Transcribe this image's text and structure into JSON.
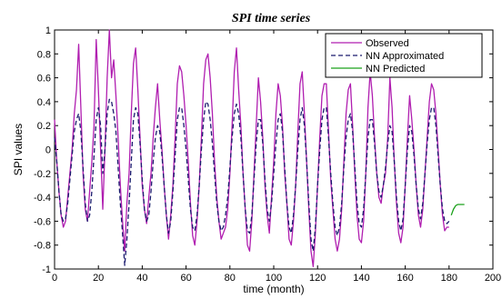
{
  "chart_data": {
    "type": "line",
    "title": "SPI time series",
    "xlabel": "time (month)",
    "ylabel": "SPI values",
    "xlim": [
      0,
      200
    ],
    "ylim": [
      -1,
      1
    ],
    "xticks": [
      0,
      20,
      40,
      60,
      80,
      100,
      120,
      140,
      160,
      180,
      200
    ],
    "yticks": [
      -1,
      -0.8,
      -0.6,
      -0.4,
      -0.2,
      0,
      0.2,
      0.4,
      0.6,
      0.8,
      1
    ],
    "legend_position": "top-right",
    "series": [
      {
        "name": "Observed",
        "color": "#b01eb0",
        "style": "solid",
        "x": [
          0,
          1,
          2,
          3,
          4,
          5,
          6,
          7,
          8,
          9,
          10,
          11,
          12,
          13,
          14,
          15,
          16,
          17,
          18,
          19,
          20,
          21,
          22,
          23,
          24,
          25,
          26,
          27,
          28,
          29,
          30,
          31,
          32,
          33,
          34,
          35,
          36,
          37,
          38,
          39,
          40,
          41,
          42,
          43,
          44,
          45,
          46,
          47,
          48,
          49,
          50,
          51,
          52,
          53,
          54,
          55,
          56,
          57,
          58,
          59,
          60,
          61,
          62,
          63,
          64,
          65,
          66,
          67,
          68,
          69,
          70,
          71,
          72,
          73,
          74,
          75,
          76,
          77,
          78,
          79,
          80,
          81,
          82,
          83,
          84,
          85,
          86,
          87,
          88,
          89,
          90,
          91,
          92,
          93,
          94,
          95,
          96,
          97,
          98,
          99,
          100,
          101,
          102,
          103,
          104,
          105,
          106,
          107,
          108,
          109,
          110,
          111,
          112,
          113,
          114,
          115,
          116,
          117,
          118,
          119,
          120,
          121,
          122,
          123,
          124,
          125,
          126,
          127,
          128,
          129,
          130,
          131,
          132,
          133,
          134,
          135,
          136,
          137,
          138,
          139,
          140,
          141,
          142,
          143,
          144,
          145,
          146,
          147,
          148,
          149,
          150,
          151,
          152,
          153,
          154,
          155,
          156,
          157,
          158,
          159,
          160,
          161,
          162,
          163,
          164,
          165,
          166,
          167,
          168,
          169,
          170,
          171,
          172,
          173,
          174,
          175,
          176,
          177,
          178,
          179,
          180
        ],
        "y": [
          0.25,
          -0.1,
          -0.35,
          -0.55,
          -0.65,
          -0.6,
          -0.4,
          -0.2,
          0.0,
          0.3,
          0.5,
          0.88,
          0.35,
          -0.2,
          -0.5,
          -0.6,
          -0.35,
          -0.1,
          0.2,
          0.92,
          0.5,
          0.0,
          -0.5,
          0.0,
          0.6,
          1.0,
          0.6,
          0.75,
          0.45,
          0.1,
          -0.3,
          -0.6,
          -0.85,
          -0.45,
          -0.2,
          0.3,
          0.72,
          0.85,
          0.5,
          0.1,
          -0.3,
          -0.5,
          -0.62,
          -0.4,
          -0.2,
          0.1,
          0.35,
          0.55,
          0.25,
          0.0,
          -0.3,
          -0.55,
          -0.75,
          -0.55,
          -0.3,
          0.1,
          0.55,
          0.7,
          0.65,
          0.45,
          0.2,
          -0.1,
          -0.45,
          -0.72,
          -0.8,
          -0.6,
          -0.3,
          0.1,
          0.55,
          0.75,
          0.8,
          0.6,
          0.3,
          -0.1,
          -0.4,
          -0.6,
          -0.75,
          -0.7,
          -0.65,
          -0.5,
          -0.2,
          0.2,
          0.65,
          0.85,
          0.5,
          0.2,
          -0.2,
          -0.5,
          -0.8,
          -0.85,
          -0.6,
          -0.2,
          0.2,
          0.6,
          0.4,
          0.1,
          -0.3,
          -0.55,
          -0.7,
          -0.4,
          -0.1,
          0.3,
          0.55,
          0.45,
          0.2,
          -0.2,
          -0.45,
          -0.75,
          -0.8,
          -0.6,
          -0.3,
          0.15,
          0.55,
          0.65,
          0.3,
          -0.1,
          -0.5,
          -0.85,
          -0.98,
          -0.7,
          -0.3,
          0.1,
          0.45,
          0.55,
          0.55,
          0.15,
          -0.25,
          -0.5,
          -0.75,
          -0.85,
          -0.75,
          -0.5,
          -0.1,
          0.3,
          0.5,
          0.55,
          0.2,
          -0.2,
          -0.55,
          -0.75,
          -0.78,
          -0.6,
          -0.2,
          0.35,
          0.65,
          0.45,
          0.1,
          -0.2,
          -0.4,
          -0.45,
          -0.3,
          -0.2,
          0.1,
          0.6,
          0.35,
          -0.1,
          -0.45,
          -0.7,
          -0.78,
          -0.65,
          -0.3,
          0.1,
          0.45,
          0.25,
          0.0,
          -0.3,
          -0.55,
          -0.65,
          -0.5,
          -0.2,
          0.1,
          0.4,
          0.55,
          0.5,
          0.3,
          0.0,
          -0.3,
          -0.55,
          -0.68,
          -0.65,
          -0.65
        ]
      },
      {
        "name": "NN Approximated",
        "color": "#1a1a6e",
        "style": "dashed",
        "x": [
          0,
          1,
          2,
          3,
          4,
          5,
          6,
          7,
          8,
          9,
          10,
          11,
          12,
          13,
          14,
          15,
          16,
          17,
          18,
          19,
          20,
          21,
          22,
          23,
          24,
          25,
          26,
          27,
          28,
          29,
          30,
          31,
          32,
          33,
          34,
          35,
          36,
          37,
          38,
          39,
          40,
          41,
          42,
          43,
          44,
          45,
          46,
          47,
          48,
          49,
          50,
          51,
          52,
          53,
          54,
          55,
          56,
          57,
          58,
          59,
          60,
          61,
          62,
          63,
          64,
          65,
          66,
          67,
          68,
          69,
          70,
          71,
          72,
          73,
          74,
          75,
          76,
          77,
          78,
          79,
          80,
          81,
          82,
          83,
          84,
          85,
          86,
          87,
          88,
          89,
          90,
          91,
          92,
          93,
          94,
          95,
          96,
          97,
          98,
          99,
          100,
          101,
          102,
          103,
          104,
          105,
          106,
          107,
          108,
          109,
          110,
          111,
          112,
          113,
          114,
          115,
          116,
          117,
          118,
          119,
          120,
          121,
          122,
          123,
          124,
          125,
          126,
          127,
          128,
          129,
          130,
          131,
          132,
          133,
          134,
          135,
          136,
          137,
          138,
          139,
          140,
          141,
          142,
          143,
          144,
          145,
          146,
          147,
          148,
          149,
          150,
          151,
          152,
          153,
          154,
          155,
          156,
          157,
          158,
          159,
          160,
          161,
          162,
          163,
          164,
          165,
          166,
          167,
          168,
          169,
          170,
          171,
          172,
          173,
          174,
          175,
          176,
          177,
          178,
          179,
          180
        ],
        "y": [
          0.1,
          -0.1,
          -0.35,
          -0.55,
          -0.6,
          -0.58,
          -0.45,
          -0.25,
          -0.05,
          0.15,
          0.25,
          0.3,
          0.15,
          -0.15,
          -0.45,
          -0.6,
          -0.55,
          -0.35,
          -0.05,
          0.25,
          0.35,
          0.2,
          -0.2,
          0.0,
          0.3,
          0.42,
          0.4,
          0.3,
          0.15,
          -0.15,
          -0.45,
          -0.7,
          -0.97,
          -0.75,
          -0.45,
          -0.1,
          0.25,
          0.35,
          0.3,
          0.05,
          -0.25,
          -0.5,
          -0.6,
          -0.55,
          -0.35,
          -0.1,
          0.1,
          0.2,
          0.15,
          -0.05,
          -0.3,
          -0.55,
          -0.7,
          -0.6,
          -0.35,
          -0.05,
          0.25,
          0.35,
          0.35,
          0.2,
          0.0,
          -0.25,
          -0.5,
          -0.65,
          -0.68,
          -0.55,
          -0.3,
          0.0,
          0.25,
          0.4,
          0.38,
          0.25,
          0.05,
          -0.2,
          -0.45,
          -0.6,
          -0.68,
          -0.65,
          -0.55,
          -0.4,
          -0.15,
          0.1,
          0.3,
          0.38,
          0.3,
          0.1,
          -0.2,
          -0.5,
          -0.68,
          -0.7,
          -0.55,
          -0.25,
          0.05,
          0.25,
          0.25,
          0.05,
          -0.25,
          -0.5,
          -0.6,
          -0.45,
          -0.2,
          0.05,
          0.25,
          0.3,
          0.15,
          -0.15,
          -0.45,
          -0.65,
          -0.7,
          -0.55,
          -0.3,
          0.0,
          0.25,
          0.35,
          0.2,
          -0.1,
          -0.45,
          -0.75,
          -0.85,
          -0.65,
          -0.3,
          0.0,
          0.25,
          0.35,
          0.35,
          0.1,
          -0.2,
          -0.45,
          -0.65,
          -0.72,
          -0.65,
          -0.45,
          -0.15,
          0.1,
          0.25,
          0.3,
          0.15,
          -0.15,
          -0.45,
          -0.62,
          -0.65,
          -0.5,
          -0.2,
          0.1,
          0.25,
          0.25,
          0.05,
          -0.2,
          -0.35,
          -0.4,
          -0.3,
          -0.15,
          0.05,
          0.2,
          0.15,
          -0.1,
          -0.4,
          -0.6,
          -0.68,
          -0.58,
          -0.3,
          0.0,
          0.2,
          0.15,
          -0.05,
          -0.3,
          -0.5,
          -0.58,
          -0.45,
          -0.2,
          0.05,
          0.25,
          0.35,
          0.35,
          0.2,
          -0.05,
          -0.3,
          -0.5,
          -0.6,
          -0.62,
          -0.6
        ]
      },
      {
        "name": "NN Predicted",
        "color": "#1aa01a",
        "style": "solid",
        "x": [
          181,
          182,
          183,
          184,
          185,
          186,
          187
        ],
        "y": [
          -0.55,
          -0.5,
          -0.47,
          -0.46,
          -0.46,
          -0.46,
          -0.46
        ]
      }
    ]
  }
}
